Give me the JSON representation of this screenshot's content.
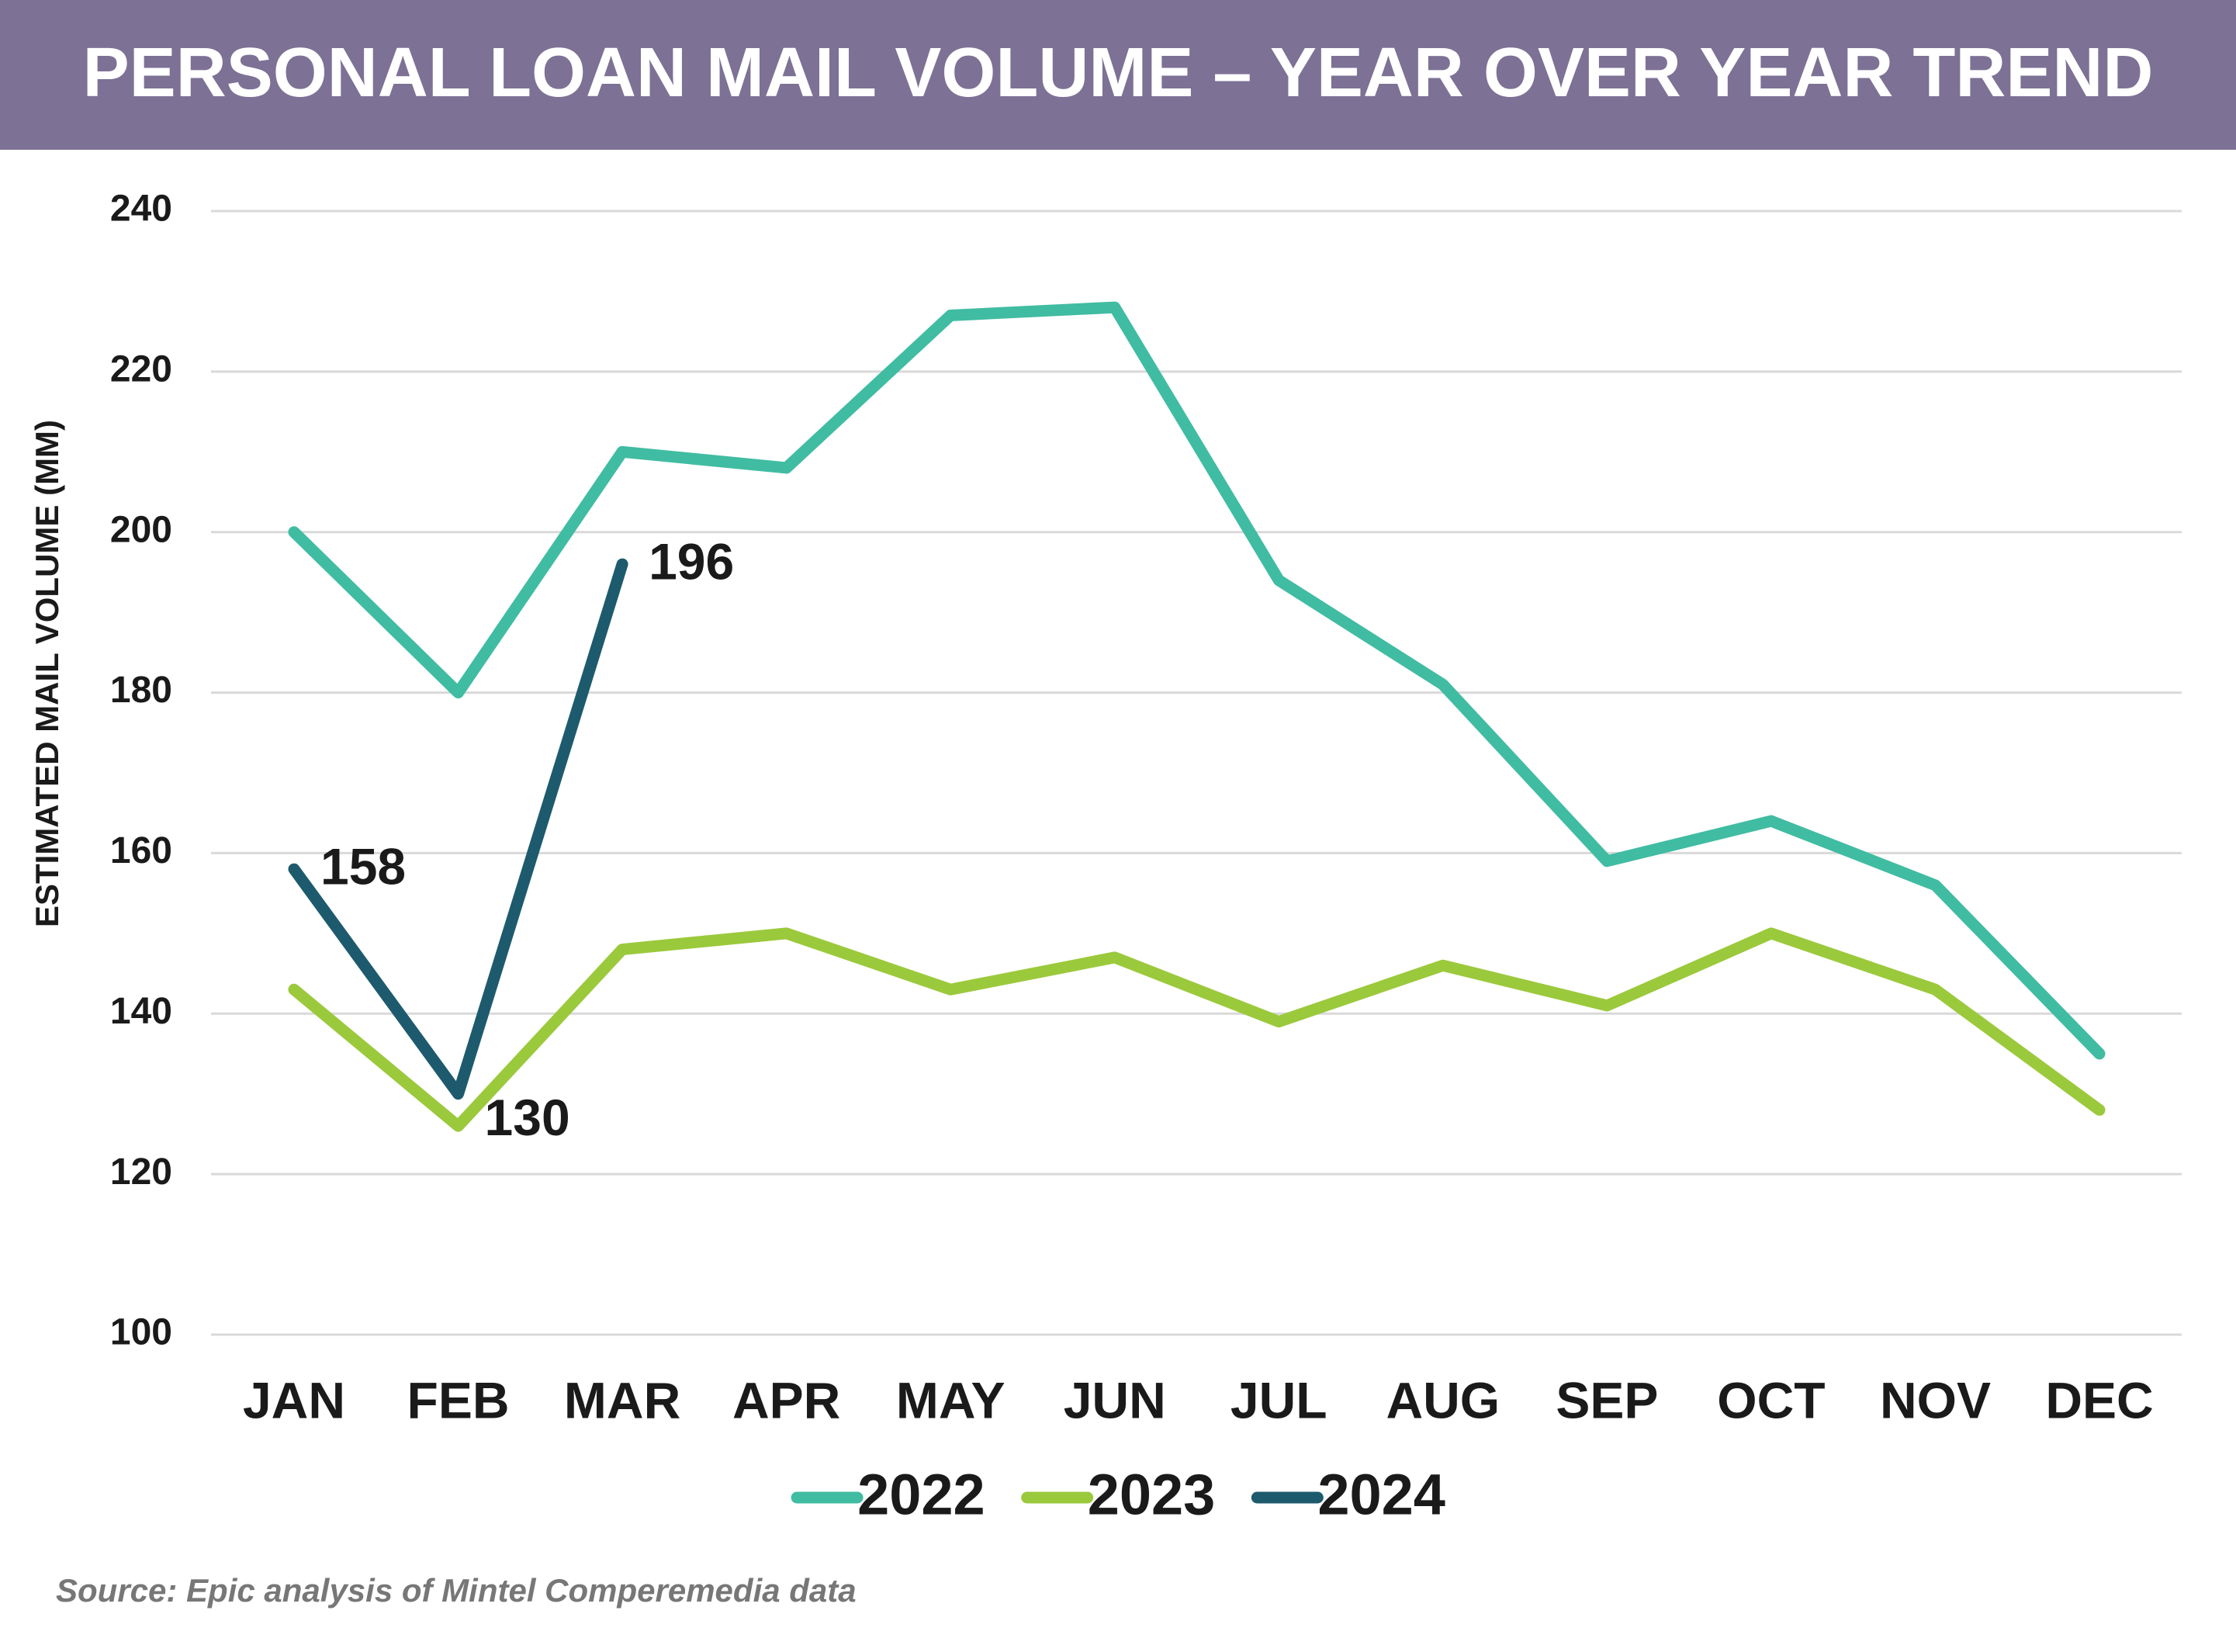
{
  "chart_data": {
    "type": "line",
    "title": "PERSONAL LOAN MAIL VOLUME – YEAR OVER YEAR TREND",
    "y_label": "ESTIMATED MAIL VOLUME (MM)",
    "source": "Source: Epic analysis of Mintel Comperemedia data",
    "categories": [
      "JAN",
      "FEB",
      "MAR",
      "APR",
      "MAY",
      "JUN",
      "JUL",
      "AUG",
      "SEP",
      "OCT",
      "NOV",
      "DEC"
    ],
    "series": [
      {
        "name": "2022",
        "color": "#40bca2",
        "values": [
          200,
          180,
          210,
          208,
          227,
          228,
          194,
          181,
          159,
          164,
          156,
          135
        ]
      },
      {
        "name": "2023",
        "color": "#9bc93c",
        "values": [
          143,
          126,
          148,
          150,
          143,
          147,
          139,
          146,
          141,
          150,
          143,
          128
        ]
      },
      {
        "name": "2024",
        "color": "#1e5a6d",
        "values": [
          158,
          130,
          196,
          null,
          null,
          null,
          null,
          null,
          null,
          null,
          null,
          null
        ],
        "data_labels": true
      }
    ],
    "ylim": [
      100,
      240
    ],
    "yticks": [
      100,
      120,
      140,
      160,
      180,
      200,
      220,
      240
    ],
    "grid": true,
    "legend": "bottom"
  }
}
